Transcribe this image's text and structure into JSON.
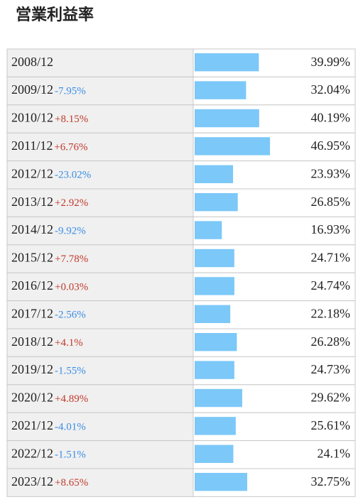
{
  "chart_data": {
    "type": "bar",
    "title": "営業利益率",
    "categories": [
      "2008/12",
      "2009/12",
      "2010/12",
      "2011/12",
      "2012/12",
      "2013/12",
      "2014/12",
      "2015/12",
      "2016/12",
      "2017/12",
      "2018/12",
      "2019/12",
      "2020/12",
      "2021/12",
      "2022/12",
      "2023/12"
    ],
    "values": [
      39.99,
      32.04,
      40.19,
      46.95,
      23.93,
      26.85,
      16.93,
      24.71,
      24.74,
      22.18,
      26.28,
      24.73,
      29.62,
      25.61,
      24.1,
      32.75
    ],
    "value_labels": [
      "39.99%",
      "32.04%",
      "40.19%",
      "46.95%",
      "23.93%",
      "26.85%",
      "16.93%",
      "24.71%",
      "24.74%",
      "22.18%",
      "26.28%",
      "24.73%",
      "29.62%",
      "25.61%",
      "24.1%",
      "32.75%"
    ],
    "change_labels": [
      null,
      "-7.95%",
      "+8.15%",
      "+6.76%",
      "-23.02%",
      "+2.92%",
      "-9.92%",
      "+7.78%",
      "+0.03%",
      "-2.56%",
      "+4.1%",
      "-1.55%",
      "+4.89%",
      "-4.01%",
      "-1.51%",
      "+8.65%"
    ],
    "color": "#7cc8f8",
    "positive_color": "#c0392b",
    "negative_color": "#3a8ee6",
    "xlim": [
      0,
      100
    ]
  }
}
